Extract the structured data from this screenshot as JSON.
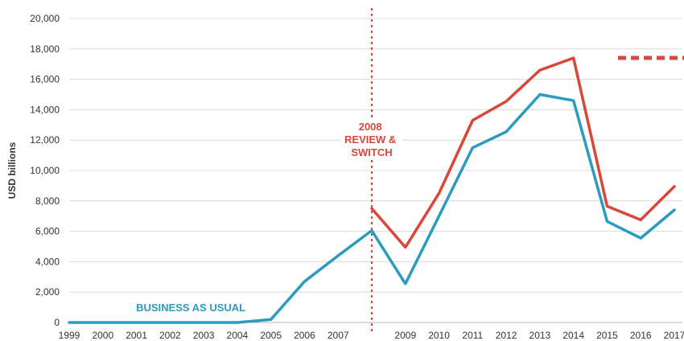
{
  "chart_data": {
    "type": "line",
    "title": "",
    "xlabel": "",
    "ylabel": "USD billions",
    "x_tick_labels": [
      "1999",
      "2000",
      "2001",
      "2002",
      "2003",
      "2004",
      "2005",
      "2006",
      "2007",
      "2009",
      "2010",
      "2011",
      "2012",
      "2013",
      "2014",
      "2015",
      "2016",
      "2017"
    ],
    "y_tick_labels": [
      "0",
      "2,000",
      "4,000",
      "6,000",
      "8,000",
      "10,000",
      "12,000",
      "14,000",
      "16,000",
      "18,000",
      "20,000"
    ],
    "ylim": [
      0,
      20000
    ],
    "xlim": [
      1999,
      2017
    ],
    "grid": "horizontal",
    "series": [
      {
        "name": "BUSINESS AS USUAL",
        "color": "#2b9bc0",
        "x": [
          1999,
          2000,
          2001,
          2002,
          2003,
          2004,
          2005,
          2006,
          2007,
          2008,
          2009,
          2010,
          2011,
          2012,
          2013,
          2014,
          2015,
          2016,
          2017
        ],
        "values": [
          0,
          0,
          0,
          0,
          0,
          0,
          200,
          2700,
          4400,
          6050,
          2550,
          7000,
          11500,
          12550,
          15000,
          14600,
          6650,
          5550,
          7400
        ]
      },
      {
        "name": "REVIEW & SWITCH",
        "color": "#d9473a",
        "x": [
          2008,
          2009,
          2010,
          2011,
          2012,
          2013,
          2014,
          2015,
          2016,
          2017
        ],
        "values": [
          7500,
          4950,
          8500,
          13300,
          14550,
          16600,
          17400,
          7650,
          6750,
          8950
        ]
      }
    ],
    "annotations": {
      "switch_line": {
        "x": 2008,
        "label_lines": [
          "2008",
          "REVIEW &",
          "SWITCH"
        ],
        "color": "#d9473a"
      },
      "bau_label": {
        "text": "BUSINESS AS USUAL",
        "color": "#2b9bc0",
        "x": 2003,
        "y": 1000
      }
    },
    "legend_fragment_color": "#d9473a"
  }
}
